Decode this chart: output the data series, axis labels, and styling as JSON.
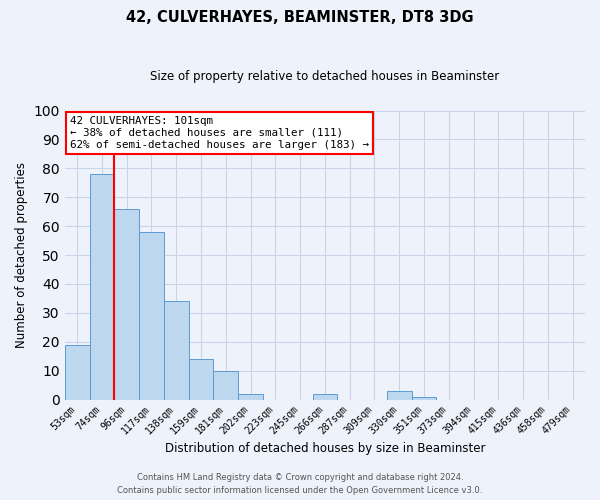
{
  "title": "42, CULVERHAYES, BEAMINSTER, DT8 3DG",
  "subtitle": "Size of property relative to detached houses in Beaminster",
  "xlabel": "Distribution of detached houses by size in Beaminster",
  "ylabel": "Number of detached properties",
  "bar_labels": [
    "53sqm",
    "74sqm",
    "96sqm",
    "117sqm",
    "138sqm",
    "159sqm",
    "181sqm",
    "202sqm",
    "223sqm",
    "245sqm",
    "266sqm",
    "287sqm",
    "309sqm",
    "330sqm",
    "351sqm",
    "373sqm",
    "394sqm",
    "415sqm",
    "436sqm",
    "458sqm",
    "479sqm"
  ],
  "bar_values": [
    19,
    78,
    66,
    58,
    34,
    14,
    10,
    2,
    0,
    0,
    2,
    0,
    0,
    3,
    1,
    0,
    0,
    0,
    0,
    0,
    0
  ],
  "bar_color": "#bdd7ee",
  "bar_edge_color": "#5b9bd5",
  "vline_color": "red",
  "vline_index": 2,
  "ylim": [
    0,
    100
  ],
  "annotation_text": "42 CULVERHAYES: 101sqm\n← 38% of detached houses are smaller (111)\n62% of semi-detached houses are larger (183) →",
  "annotation_box_color": "white",
  "annotation_box_edge": "red",
  "footer_line1": "Contains HM Land Registry data © Crown copyright and database right 2024.",
  "footer_line2": "Contains public sector information licensed under the Open Government Licence v3.0.",
  "background_color": "#eef2fa",
  "plot_bg_color": "#eef2fa",
  "grid_color": "#c8d4e8"
}
